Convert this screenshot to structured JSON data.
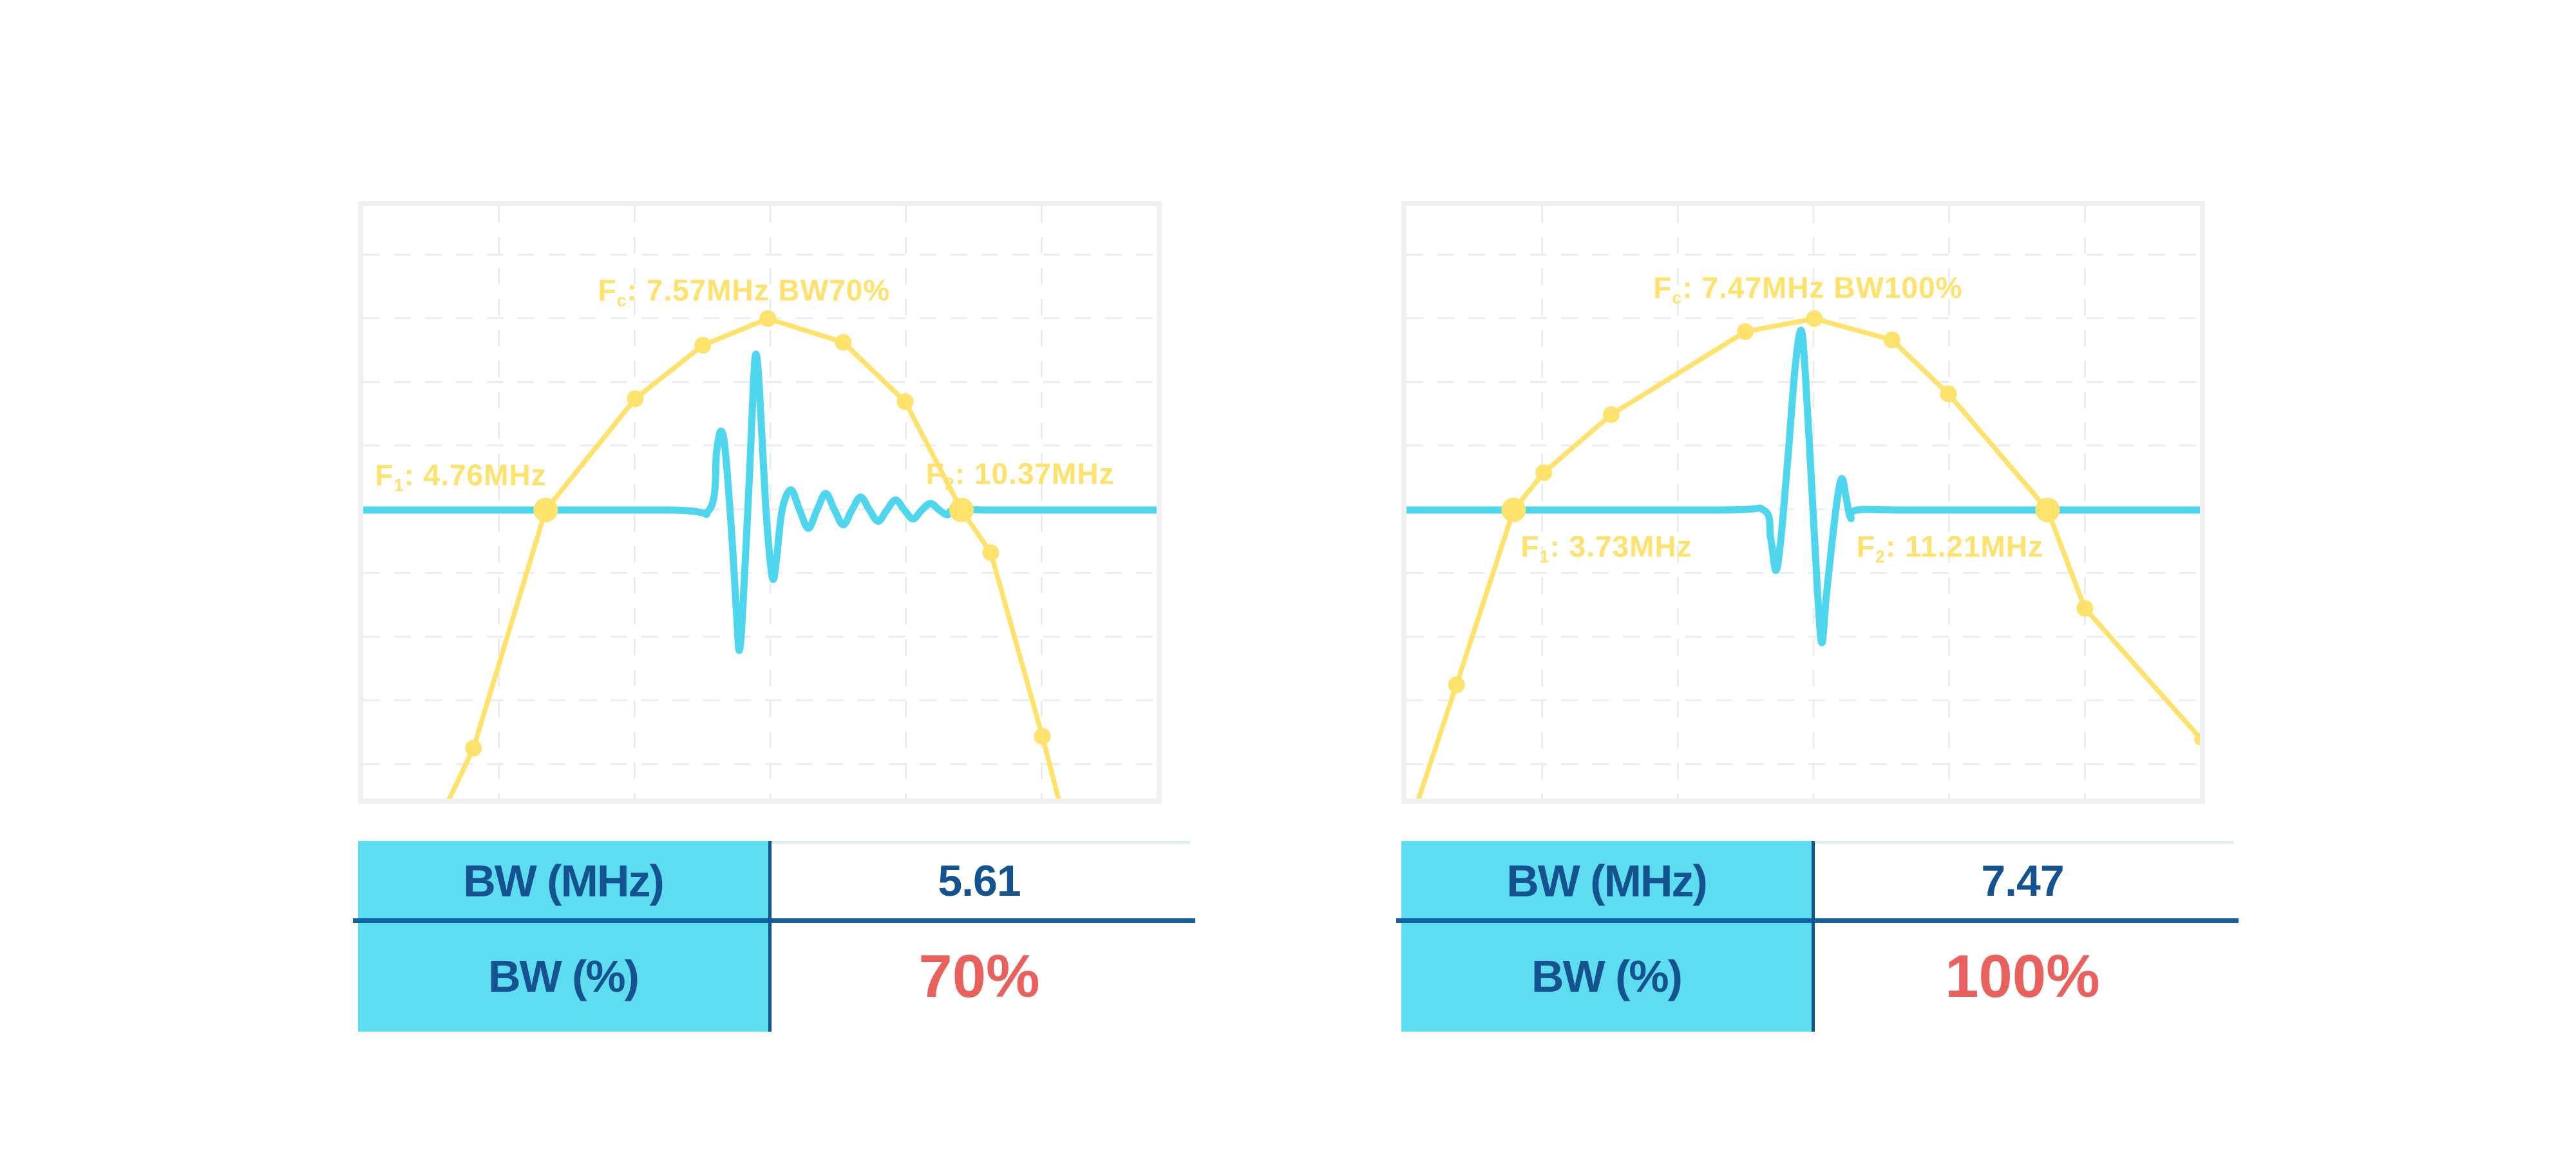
{
  "colors": {
    "background": "#ffffff",
    "yellow": "#ffe26b",
    "cyan": "#4ed6ee",
    "tablecyan": "#5fddf0",
    "darkblue": "#14538f",
    "divblue": "#1062a5",
    "red": "#e9615c",
    "border": "#efefef",
    "grid": "#ececec",
    "paleline": "#d6eef4"
  },
  "charts": [
    {
      "title": {
        "prefix": "F",
        "sub": "c",
        "rest": ": 7.57MHz BW70%"
      },
      "f1_label": {
        "prefix": "F",
        "sub": "1",
        "rest": ": 4.76MHz"
      },
      "f2_label": {
        "prefix": "F",
        "sub": "2",
        "rest": ": 10.37MHz"
      },
      "table": {
        "rows": [
          {
            "label": "BW (MHz)",
            "value": "5.61"
          },
          {
            "label": "BW (%)",
            "value": "70%"
          }
        ]
      },
      "chart_data": {
        "type": "line",
        "title": "Fc: 7.57MHz BW70%",
        "axis": "unlabeled (schematic spectrum + pulse-echo waveform)",
        "annotations": {
          "fc_MHz": 7.57,
          "f1_MHz": 4.76,
          "f2_MHz": 10.37,
          "bw_MHz": 5.61,
          "bw_pct": 70
        },
        "grid": {
          "v_frac": [
            0.171,
            0.342,
            0.513,
            0.684,
            0.855
          ],
          "h_frac": [
            0.082,
            0.189,
            0.297,
            0.404,
            0.512,
            0.619,
            0.727,
            0.834,
            0.942
          ]
        },
        "series": [
          {
            "name": "frequency-spectrum",
            "color_key": "yellow",
            "points_frac": [
              [
                0.098,
                1.03
              ],
              [
                0.139,
                0.915
              ],
              [
                0.23,
                0.513
              ],
              [
                0.343,
                0.325
              ],
              [
                0.428,
                0.235
              ],
              [
                0.51,
                0.19
              ],
              [
                0.605,
                0.23
              ],
              [
                0.683,
                0.33
              ],
              [
                0.754,
                0.513
              ],
              [
                0.791,
                0.585
              ],
              [
                0.856,
                0.895
              ],
              [
                0.882,
                1.03
              ]
            ],
            "markers_frac": [
              [
                0.139,
                0.915,
                "m"
              ],
              [
                0.23,
                0.513,
                "big"
              ],
              [
                0.343,
                0.325,
                "m"
              ],
              [
                0.428,
                0.235,
                "m"
              ],
              [
                0.51,
                0.19,
                "m"
              ],
              [
                0.605,
                0.23,
                "m"
              ],
              [
                0.683,
                0.33,
                "m"
              ],
              [
                0.754,
                0.513,
                "big"
              ],
              [
                0.791,
                0.585,
                "m"
              ],
              [
                0.856,
                0.895,
                "m"
              ]
            ]
          },
          {
            "name": "pulse-echo-waveform",
            "color_key": "cyan",
            "baseline_frac": 0.513,
            "points_frac": [
              [
                0.0,
                0.513
              ],
              [
                0.38,
                0.513
              ],
              [
                0.436,
                0.513
              ],
              [
                0.4455,
                0.413
              ],
              [
                0.451,
                0.38
              ],
              [
                0.4565,
                0.415
              ],
              [
                0.465,
                0.565
              ],
              [
                0.471,
                0.7
              ],
              [
                0.474,
                0.75
              ],
              [
                0.478,
                0.69
              ],
              [
                0.487,
                0.45
              ],
              [
                0.492,
                0.295
              ],
              [
                0.495,
                0.25
              ],
              [
                0.499,
                0.3
              ],
              [
                0.507,
                0.5
              ],
              [
                0.513,
                0.6
              ],
              [
                0.517,
                0.63
              ],
              [
                0.521,
                0.595
              ],
              [
                0.528,
                0.513
              ],
              [
                0.539,
                0.479
              ],
              [
                0.55,
                0.513
              ],
              [
                0.561,
                0.544
              ],
              [
                0.572,
                0.513
              ],
              [
                0.583,
                0.485
              ],
              [
                0.594,
                0.513
              ],
              [
                0.605,
                0.538
              ],
              [
                0.616,
                0.513
              ],
              [
                0.627,
                0.491
              ],
              [
                0.638,
                0.513
              ],
              [
                0.649,
                0.532
              ],
              [
                0.66,
                0.513
              ],
              [
                0.671,
                0.496
              ],
              [
                0.682,
                0.513
              ],
              [
                0.693,
                0.528
              ],
              [
                0.704,
                0.513
              ],
              [
                0.715,
                0.502
              ],
              [
                0.726,
                0.513
              ],
              [
                0.736,
                0.521
              ],
              [
                0.746,
                0.513
              ],
              [
                0.8,
                0.513
              ],
              [
                1.0,
                0.513
              ]
            ]
          }
        ]
      }
    },
    {
      "title": {
        "prefix": "F",
        "sub": "c",
        "rest": ": 7.47MHz BW100%"
      },
      "f1_label": {
        "prefix": "F",
        "sub": "1",
        "rest": ": 3.73MHz"
      },
      "f2_label": {
        "prefix": "F",
        "sub": "2",
        "rest": ": 11.21MHz"
      },
      "table": {
        "rows": [
          {
            "label": "BW (MHz)",
            "value": "7.47"
          },
          {
            "label": "BW (%)",
            "value": "100%"
          }
        ]
      },
      "chart_data": {
        "type": "line",
        "title": "Fc: 7.47MHz BW100%",
        "axis": "unlabeled (schematic spectrum + pulse-echo waveform)",
        "annotations": {
          "fc_MHz": 7.47,
          "f1_MHz": 3.73,
          "f2_MHz": 11.21,
          "bw_MHz": 7.47,
          "bw_pct": 100
        },
        "grid": {
          "v_frac": [
            0.171,
            0.342,
            0.513,
            0.684,
            0.855
          ],
          "h_frac": [
            0.082,
            0.189,
            0.297,
            0.404,
            0.512,
            0.619,
            0.727,
            0.834,
            0.942
          ]
        },
        "series": [
          {
            "name": "frequency-spectrum",
            "color_key": "yellow",
            "points_frac": [
              [
                0.008,
                1.03
              ],
              [
                0.063,
                0.808
              ],
              [
                0.135,
                0.513
              ],
              [
                0.173,
                0.45
              ],
              [
                0.258,
                0.352
              ],
              [
                0.427,
                0.212
              ],
              [
                0.514,
                0.19
              ],
              [
                0.612,
                0.226
              ],
              [
                0.683,
                0.317
              ],
              [
                0.808,
                0.513
              ],
              [
                0.855,
                0.679
              ],
              [
                1.003,
                0.902
              ]
            ],
            "markers_frac": [
              [
                0.063,
                0.808,
                "m"
              ],
              [
                0.135,
                0.513,
                "big"
              ],
              [
                0.173,
                0.45,
                "m"
              ],
              [
                0.258,
                0.352,
                "m"
              ],
              [
                0.427,
                0.212,
                "m"
              ],
              [
                0.514,
                0.19,
                "m"
              ],
              [
                0.612,
                0.226,
                "m"
              ],
              [
                0.683,
                0.317,
                "m"
              ],
              [
                0.808,
                0.513,
                "big"
              ],
              [
                0.855,
                0.679,
                "m"
              ],
              [
                1.0,
                0.9,
                "small"
              ]
            ]
          },
          {
            "name": "pulse-echo-waveform",
            "color_key": "cyan",
            "baseline_frac": 0.513,
            "points_frac": [
              [
                0.0,
                0.513
              ],
              [
                0.39,
                0.513
              ],
              [
                0.45,
                0.513
              ],
              [
                0.459,
                0.56
              ],
              [
                0.4655,
                0.615
              ],
              [
                0.472,
                0.56
              ],
              [
                0.481,
                0.42
              ],
              [
                0.49,
                0.27
              ],
              [
                0.4975,
                0.21
              ],
              [
                0.503,
                0.29
              ],
              [
                0.511,
                0.48
              ],
              [
                0.518,
                0.65
              ],
              [
                0.5235,
                0.737
              ],
              [
                0.529,
                0.66
              ],
              [
                0.537,
                0.56
              ],
              [
                0.5435,
                0.49
              ],
              [
                0.549,
                0.46
              ],
              [
                0.5545,
                0.495
              ],
              [
                0.56,
                0.527
              ],
              [
                0.568,
                0.513
              ],
              [
                0.64,
                0.513
              ],
              [
                1.0,
                0.513
              ]
            ]
          }
        ]
      }
    }
  ]
}
